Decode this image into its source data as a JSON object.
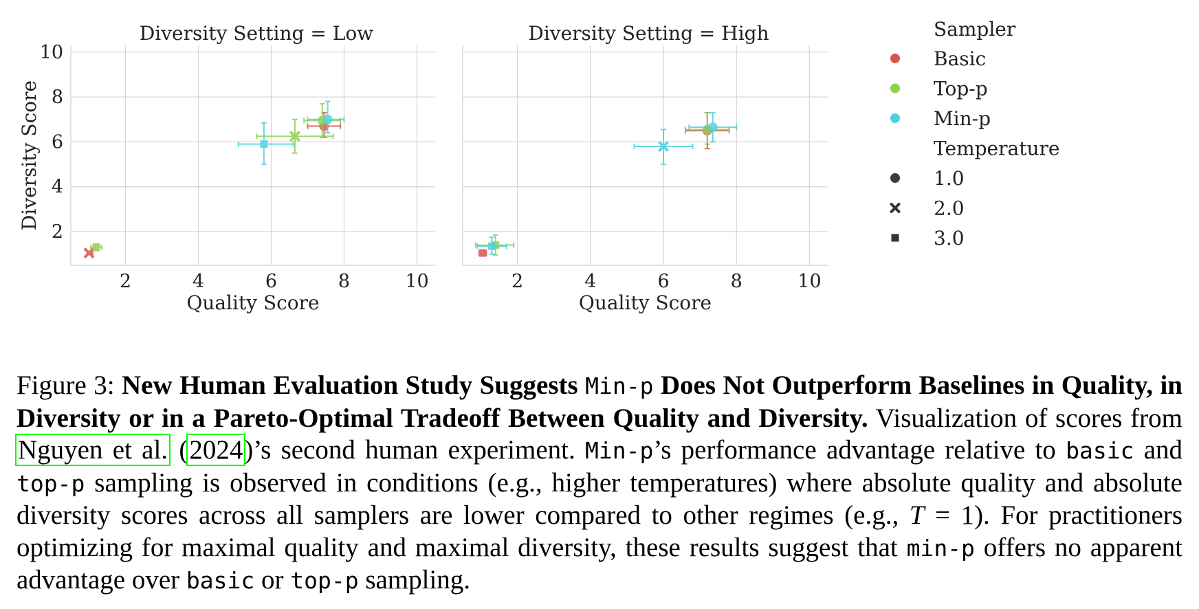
{
  "chart_data": {
    "type": "scatter",
    "xlabel": "Quality Score",
    "ylabel": "Diversity Score",
    "xlim": [
      0.5,
      10.5
    ],
    "ylim": [
      0.5,
      10.3
    ],
    "xticks": [
      "2",
      "4",
      "6",
      "8",
      "10"
    ],
    "yticks": [
      "2",
      "4",
      "6",
      "8",
      "10"
    ],
    "grid": true,
    "legend_placement": "right",
    "legend": {
      "hue_title": "Sampler",
      "samplers": [
        {
          "name": "Basic",
          "color": "#d9534f"
        },
        {
          "name": "Top-p",
          "color": "#8fd24f"
        },
        {
          "name": "Min-p",
          "color": "#4fd0dc"
        }
      ],
      "style_title": "Temperature",
      "temperatures": [
        {
          "name": "1.0",
          "marker": "circle"
        },
        {
          "name": "2.0",
          "marker": "x"
        },
        {
          "name": "3.0",
          "marker": "square"
        }
      ]
    },
    "panels": [
      {
        "title": "Diversity Setting = Low",
        "points": [
          {
            "sampler": "Basic",
            "temperature": "1.0",
            "x": 7.45,
            "y": 6.7,
            "xerr": [
              7.0,
              7.9
            ],
            "yerr": [
              6.2,
              7.3
            ]
          },
          {
            "sampler": "Basic",
            "temperature": "2.0",
            "x": 1.0,
            "y": 1.05,
            "xerr": [
              0.95,
              1.1
            ],
            "yerr": [
              1.0,
              1.1
            ]
          },
          {
            "sampler": "Top-p",
            "temperature": "1.0",
            "x": 7.4,
            "y": 6.95,
            "xerr": [
              6.9,
              7.9
            ],
            "yerr": [
              6.2,
              7.7
            ]
          },
          {
            "sampler": "Top-p",
            "temperature": "2.0",
            "x": 6.65,
            "y": 6.25,
            "xerr": [
              5.6,
              7.7
            ],
            "yerr": [
              5.5,
              7.0
            ]
          },
          {
            "sampler": "Top-p",
            "temperature": "3.0",
            "x": 1.2,
            "y": 1.3,
            "xerr": [
              1.05,
              1.35
            ],
            "yerr": [
              1.15,
              1.45
            ]
          },
          {
            "sampler": "Min-p",
            "temperature": "1.0",
            "x": 7.55,
            "y": 7.0,
            "xerr": [
              7.0,
              8.0
            ],
            "yerr": [
              6.4,
              7.8
            ]
          },
          {
            "sampler": "Min-p",
            "temperature": "3.0",
            "x": 5.8,
            "y": 5.9,
            "xerr": [
              5.1,
              6.6
            ],
            "yerr": [
              5.0,
              6.85
            ]
          }
        ]
      },
      {
        "title": "Diversity Setting = High",
        "points": [
          {
            "sampler": "Basic",
            "temperature": "1.0",
            "x": 7.2,
            "y": 6.5,
            "xerr": [
              6.6,
              7.8
            ],
            "yerr": [
              5.7,
              7.3
            ]
          },
          {
            "sampler": "Basic",
            "temperature": "3.0",
            "x": 1.05,
            "y": 1.05,
            "xerr": [
              0.95,
              1.15
            ],
            "yerr": [
              0.95,
              1.15
            ]
          },
          {
            "sampler": "Top-p",
            "temperature": "1.0",
            "x": 7.2,
            "y": 6.55,
            "xerr": [
              6.6,
              7.8
            ],
            "yerr": [
              5.9,
              7.3
            ]
          },
          {
            "sampler": "Top-p",
            "temperature": "3.0",
            "x": 1.4,
            "y": 1.4,
            "xerr": [
              0.85,
              1.9
            ],
            "yerr": [
              0.95,
              1.85
            ]
          },
          {
            "sampler": "Min-p",
            "temperature": "1.0",
            "x": 7.35,
            "y": 6.65,
            "xerr": [
              6.7,
              8.0
            ],
            "yerr": [
              6.0,
              7.3
            ]
          },
          {
            "sampler": "Min-p",
            "temperature": "2.0",
            "x": 6.0,
            "y": 5.8,
            "xerr": [
              5.2,
              6.8
            ],
            "yerr": [
              5.0,
              6.55
            ]
          },
          {
            "sampler": "Min-p",
            "temperature": "3.0",
            "x": 1.3,
            "y": 1.35,
            "xerr": [
              0.9,
              1.7
            ],
            "yerr": [
              1.0,
              1.75
            ]
          }
        ]
      }
    ]
  },
  "caption": {
    "label": "Figure 3: ",
    "bold_a": "New Human Evaluation Study Suggests ",
    "bold_mono": "Min-p",
    "bold_b": " Does Not Outperform Baselines in Quality, in Diversity or in a Pareto-Optimal Tradeoff Between Quality and Diversity.",
    "t1": " Visualization of scores from ",
    "cite_authors": "Nguyen et al.",
    "cite_paren_open": " (",
    "cite_year": "2024",
    "t2": ")’s second human experiment. ",
    "mono_minp": "Min-p",
    "t3": "’s performance advantage relative to ",
    "mono_basic": "basic",
    "t4": " and ",
    "mono_topp": "top-p",
    "t5": " sampling is observed in conditions (e.g., higher temperatures) where absolute quality and absolute diversity scores across all samplers are lower compared to other regimes (e.g., ",
    "math_T": "T",
    "math_eq": " = 1",
    "t6": "). For practitioners optimizing for maximal quality and maximal diversity, these results suggest that ",
    "mono_minp2": "min-p",
    "t7": " offers no apparent advantage over ",
    "mono_basic2": "basic",
    "t8": " or ",
    "mono_topp2": "top-p",
    "t9": " sampling."
  }
}
